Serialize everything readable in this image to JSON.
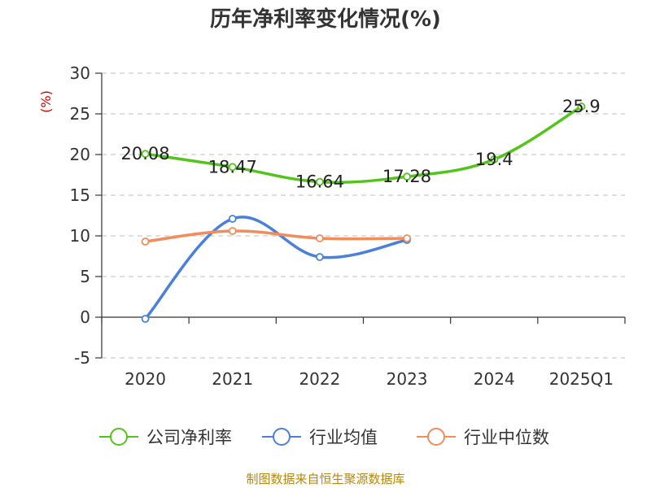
{
  "chart_data": {
    "type": "line",
    "title": "历年净利率变化情况(%)",
    "ylabel": "(%)",
    "ylim": [
      -5,
      30
    ],
    "yticks": [
      -5,
      0,
      5,
      10,
      15,
      20,
      25,
      30
    ],
    "categories": [
      "2020",
      "2021",
      "2022",
      "2023",
      "2024",
      "2025Q1"
    ],
    "grid": true,
    "legend_position": "bottom",
    "series": [
      {
        "name": "公司净利率",
        "color": "#52c41a",
        "values": [
          20.08,
          18.47,
          16.64,
          17.28,
          19.4,
          25.9
        ],
        "labels": [
          "20.08",
          "18.47",
          "16.64",
          "17.28",
          "19.4",
          "25.9"
        ]
      },
      {
        "name": "行业均值",
        "color": "#4a7fdc",
        "values": [
          -0.2,
          12.1,
          7.4,
          9.5,
          null,
          null
        ]
      },
      {
        "name": "行业中位数",
        "color": "#f28c5a",
        "values": [
          9.3,
          10.6,
          9.7,
          9.7,
          null,
          null
        ]
      }
    ]
  },
  "source": "制图数据来自恒生聚源数据库"
}
